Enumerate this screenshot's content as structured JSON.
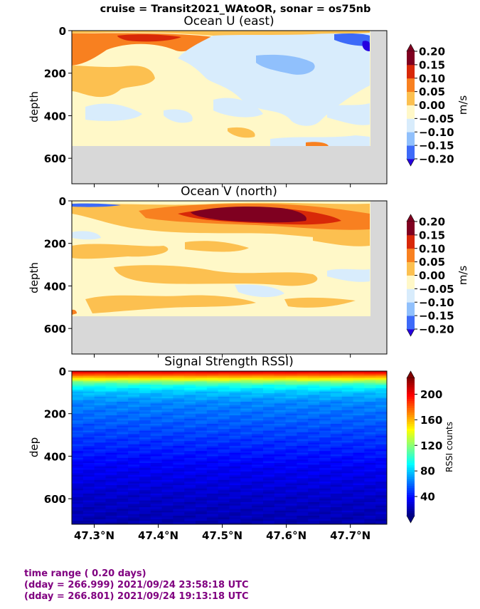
{
  "suptitle": "cruise = Transit2021_WAtoOR,  sonar = os75nb",
  "colors": {
    "bad_data": "#d8d8d8",
    "div_scale": [
      "#2500e0",
      "#3d6af8",
      "#90c0fc",
      "#d8ecfc",
      "#fff8c8",
      "#fcc050",
      "#f88020",
      "#d82808",
      "#7f0020"
    ],
    "footer_text": "#800080"
  },
  "chart_data": [
    {
      "type": "heatmap",
      "title": "Ocean U (east)",
      "ylabel": "depth",
      "ylim": [
        720,
        0
      ],
      "xlim": [
        47.265,
        47.757
      ],
      "y_ticks": [
        "0",
        "200",
        "400",
        "600"
      ],
      "colorbar": {
        "label": "m/s",
        "ticks": [
          "0.20",
          "0.15",
          "0.10",
          "0.05",
          "0.00",
          "−0.05",
          "−0.10",
          "−0.15",
          "−0.20"
        ],
        "range": [
          -0.2,
          0.2
        ],
        "extend": "both"
      },
      "valid_depth_max": 560,
      "valid_x_max": 47.73,
      "seabed_depth": [
        [
          47.265,
          545
        ],
        [
          47.42,
          545
        ],
        [
          47.46,
          560
        ],
        [
          47.757,
          560
        ]
      ]
    },
    {
      "type": "heatmap",
      "title": "Ocean V (north)",
      "ylabel": "depth",
      "ylim": [
        720,
        0
      ],
      "xlim": [
        47.265,
        47.757
      ],
      "y_ticks": [
        "0",
        "200",
        "400",
        "600"
      ],
      "colorbar": {
        "label": "m/s",
        "ticks": [
          "0.20",
          "0.15",
          "0.10",
          "0.05",
          "0.00",
          "−0.05",
          "−0.10",
          "−0.15",
          "−0.20"
        ],
        "range": [
          -0.2,
          0.2
        ],
        "extend": "both"
      },
      "valid_depth_max": 560,
      "valid_x_max": 47.73,
      "seabed_depth": [
        [
          47.265,
          545
        ],
        [
          47.42,
          545
        ],
        [
          47.46,
          560
        ],
        [
          47.757,
          560
        ]
      ]
    },
    {
      "type": "heatmap",
      "title": " Signal Strength RSSI)",
      "ylabel": "dep",
      "ylim": [
        720,
        0
      ],
      "xlim": [
        47.265,
        47.757
      ],
      "y_ticks": [
        "0",
        "200",
        "400",
        "600"
      ],
      "x_ticks": [
        "47.3°N",
        "47.4°N",
        "47.5°N",
        "47.6°N",
        "47.7°N"
      ],
      "x_tick_values": [
        47.3,
        47.4,
        47.5,
        47.6,
        47.7
      ],
      "colorbar": {
        "label": "RSSI counts",
        "ticks": [
          "200",
          "160",
          "120",
          "80",
          "40"
        ],
        "tick_values": [
          200,
          160,
          120,
          80,
          40
        ],
        "range": [
          10,
          225
        ],
        "extend": "both"
      },
      "depth_profile": [
        [
          0,
          210
        ],
        [
          20,
          175
        ],
        [
          35,
          150
        ],
        [
          50,
          120
        ],
        [
          70,
          95
        ],
        [
          100,
          78
        ],
        [
          150,
          65
        ],
        [
          250,
          55
        ],
        [
          350,
          45
        ],
        [
          450,
          35
        ],
        [
          600,
          25
        ],
        [
          720,
          20
        ]
      ]
    }
  ],
  "footer": {
    "line1": "time range ( 0.20 days)",
    "line2": "(dday = 266.999) 2021/09/24 23:58:18 UTC",
    "line3": "(dday = 266.801) 2021/09/24 19:13:18 UTC"
  }
}
